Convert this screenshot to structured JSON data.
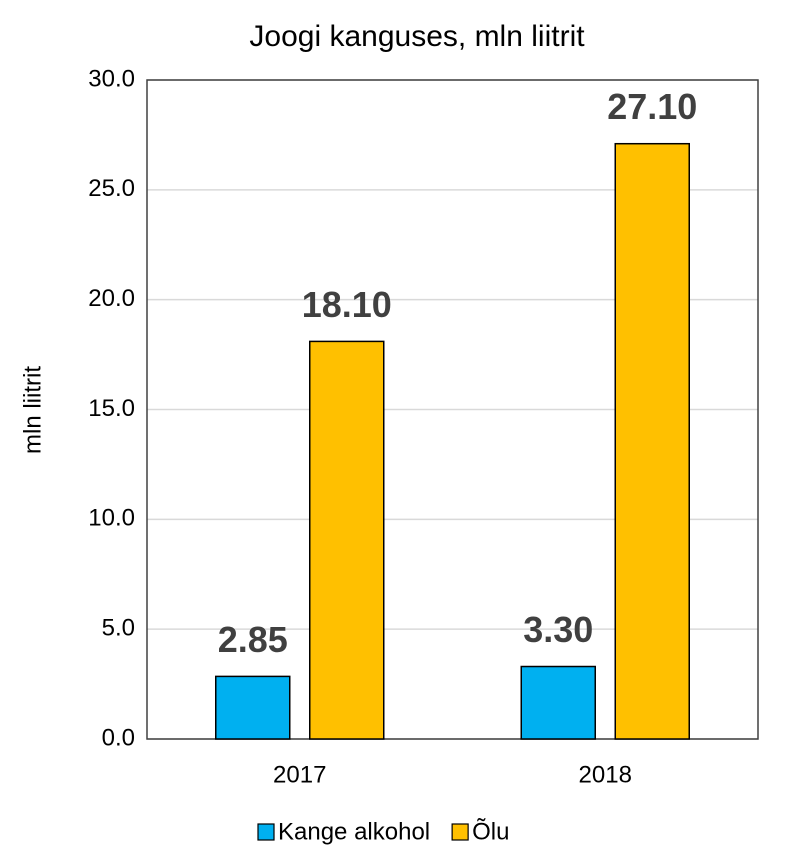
{
  "chart_data": {
    "type": "bar",
    "title": "Joogi kanguses, mln liitrit",
    "y_label": "mln liitrit",
    "categories": [
      "2017",
      "2018"
    ],
    "series": [
      {
        "name": "Kange alkohol",
        "color": "#00b0f0",
        "values": [
          2.85,
          3.3
        ],
        "value_labels": [
          "2.85",
          "3.30"
        ]
      },
      {
        "name": "Õlu",
        "color": "#ffc000",
        "values": [
          18.1,
          27.1
        ],
        "value_labels": [
          "18.10",
          "27.10"
        ]
      }
    ],
    "ylim": [
      0,
      30
    ],
    "yticks": [
      {
        "value": 0,
        "label": "0.0"
      },
      {
        "value": 5,
        "label": "5.0"
      },
      {
        "value": 10,
        "label": "10.0"
      },
      {
        "value": 15,
        "label": "15.0"
      },
      {
        "value": 20,
        "label": "20.0"
      },
      {
        "value": 25,
        "label": "25.0"
      },
      {
        "value": 30,
        "label": "30.0"
      }
    ],
    "grid": true,
    "legend": "bottom"
  }
}
